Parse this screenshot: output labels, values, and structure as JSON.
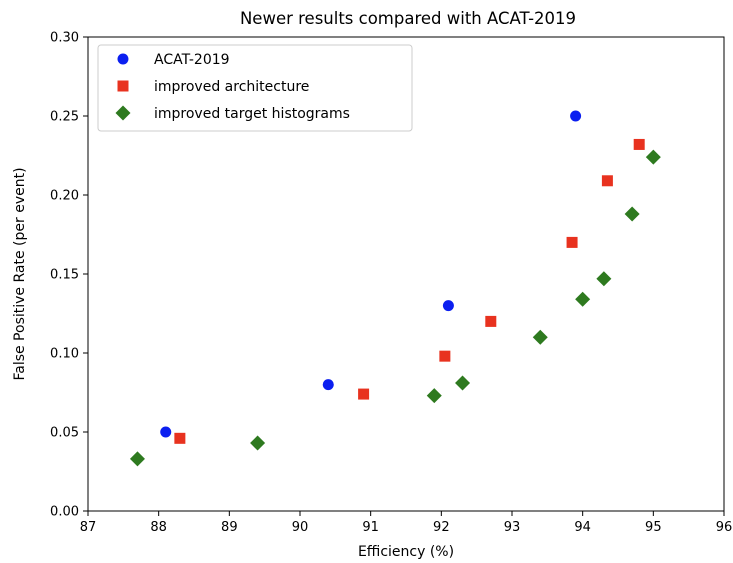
{
  "chart_data": {
    "type": "scatter",
    "title": "Newer results compared with ACAT-2019",
    "xlabel": "Efficiency (%)",
    "ylabel": "False Positive Rate (per event)",
    "xlim": [
      87,
      96
    ],
    "ylim": [
      0.0,
      0.3
    ],
    "xticks": [
      "87",
      "88",
      "89",
      "90",
      "91",
      "92",
      "93",
      "94",
      "95",
      "96"
    ],
    "yticks": [
      "0.00",
      "0.05",
      "0.10",
      "0.15",
      "0.20",
      "0.25",
      "0.30"
    ],
    "grid": false,
    "legend_position": "top-left",
    "series": [
      {
        "name": "ACAT-2019",
        "marker": "circle",
        "color": "#0b1ff0",
        "points": [
          [
            88.1,
            0.05
          ],
          [
            90.4,
            0.08
          ],
          [
            92.1,
            0.13
          ],
          [
            93.9,
            0.25
          ]
        ]
      },
      {
        "name": "improved architecture",
        "marker": "square",
        "color": "#e8321f",
        "points": [
          [
            88.3,
            0.046
          ],
          [
            90.9,
            0.074
          ],
          [
            92.05,
            0.098
          ],
          [
            92.7,
            0.12
          ],
          [
            93.85,
            0.17
          ],
          [
            94.35,
            0.209
          ],
          [
            94.8,
            0.232
          ]
        ]
      },
      {
        "name": "improved target histograms",
        "marker": "diamond",
        "color": "#2e7a1f",
        "points": [
          [
            87.7,
            0.033
          ],
          [
            89.4,
            0.043
          ],
          [
            91.9,
            0.073
          ],
          [
            92.3,
            0.081
          ],
          [
            93.4,
            0.11
          ],
          [
            94.0,
            0.134
          ],
          [
            94.3,
            0.147
          ],
          [
            94.7,
            0.188
          ],
          [
            95.0,
            0.224
          ]
        ]
      }
    ]
  }
}
